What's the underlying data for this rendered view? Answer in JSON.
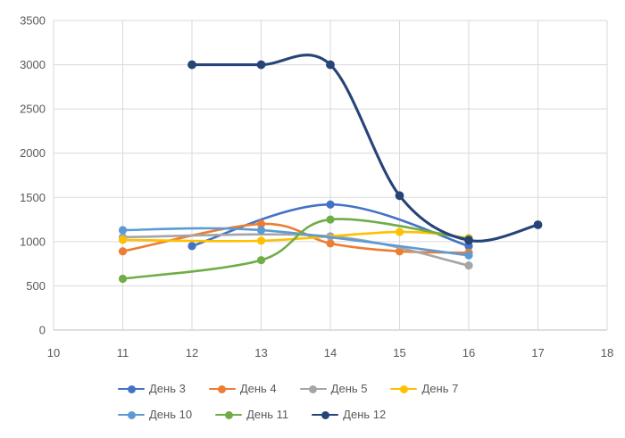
{
  "chart_data": {
    "type": "line",
    "smooth": true,
    "grid": true,
    "legend_position": "bottom",
    "x_range": [
      10,
      18
    ],
    "x_ticks": [
      "10",
      "11",
      "12",
      "13",
      "14",
      "15",
      "16",
      "17",
      "18"
    ],
    "y_range": [
      0,
      3500
    ],
    "y_ticks": [
      "0",
      "500",
      "1000",
      "1500",
      "2000",
      "2500",
      "3000",
      "3500"
    ],
    "axis_text_color": "#595959",
    "gridline_color": "#d9d9d9",
    "axis_line_color": "#bfbfbf",
    "background_color": "#ffffff",
    "series": [
      {
        "id": "day-3",
        "name": "День 3",
        "color": "#4472c4",
        "line_width": 2.6,
        "points": [
          [
            12,
            950
          ],
          [
            14,
            1420
          ],
          [
            16,
            950
          ]
        ]
      },
      {
        "id": "day-4",
        "name": "День 4",
        "color": "#ed7d31",
        "line_width": 2.6,
        "points": [
          [
            11,
            890
          ],
          [
            13,
            1200
          ],
          [
            14,
            980
          ],
          [
            15,
            890
          ],
          [
            16,
            875
          ]
        ]
      },
      {
        "id": "day-5",
        "name": "День 5",
        "color": "#a5a5a5",
        "line_width": 2.6,
        "points": [
          [
            11,
            1050
          ],
          [
            14,
            1060
          ],
          [
            16,
            730
          ]
        ]
      },
      {
        "id": "day-7",
        "name": "День 7",
        "color": "#ffc000",
        "line_width": 2.6,
        "points": [
          [
            11,
            1020
          ],
          [
            13,
            1010
          ],
          [
            15,
            1110
          ],
          [
            16,
            1040
          ]
        ]
      },
      {
        "id": "day-10",
        "name": "День 10",
        "color": "#5b9bd5",
        "line_width": 2.6,
        "points": [
          [
            11,
            1130
          ],
          [
            13,
            1130
          ],
          [
            16,
            845
          ]
        ]
      },
      {
        "id": "day-11",
        "name": "День 11",
        "color": "#70ad47",
        "line_width": 2.6,
        "points": [
          [
            11,
            580
          ],
          [
            13,
            790
          ],
          [
            14,
            1250
          ],
          [
            16,
            1030
          ]
        ]
      },
      {
        "id": "day-12",
        "name": "День 12",
        "color": "#264478",
        "line_width": 3.1,
        "points": [
          [
            12,
            3000
          ],
          [
            13,
            3000
          ],
          [
            14,
            3000
          ],
          [
            15,
            1520
          ],
          [
            16,
            1015
          ],
          [
            17,
            1190
          ]
        ]
      }
    ]
  }
}
